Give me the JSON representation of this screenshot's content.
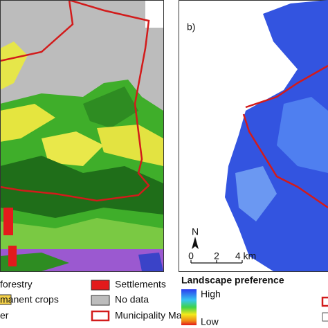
{
  "panel_b": {
    "label": "b)",
    "north": "N",
    "scale": [
      "0",
      "2",
      "4 km"
    ]
  },
  "legend_a": {
    "items": [
      "forestry",
      "manent crops",
      "er",
      "Settlements",
      "No data",
      "Municipality Mals"
    ]
  },
  "legend_b": {
    "title": "Landscape preference",
    "high": "High",
    "low": "Low"
  }
}
